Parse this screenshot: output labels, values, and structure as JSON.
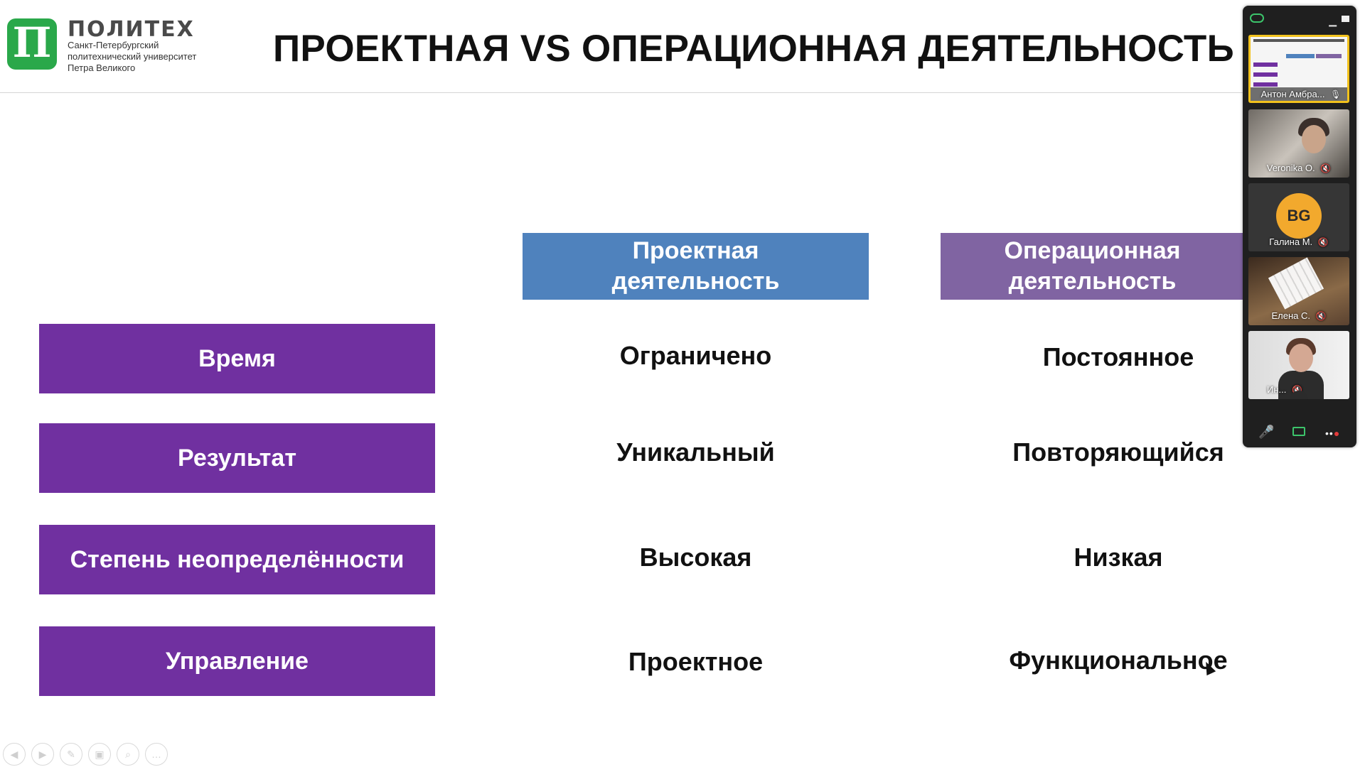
{
  "logo": {
    "name": "ПОЛИТЕХ",
    "subtitle_lines": [
      "Санкт-Петербургский",
      "политехнический университет",
      "Петра Великого"
    ]
  },
  "title": "ПРОЕКТНАЯ VS ОПЕРАЦИОННАЯ ДЕЯТЕЛЬНОСТЬ",
  "columns": [
    {
      "line1": "Проектная",
      "line2": "деятельность",
      "color": "#4f82bd"
    },
    {
      "line1": "Операционная",
      "line2": "деятельность",
      "color": "#8064a2"
    }
  ],
  "rows": [
    {
      "label": "Время",
      "project": "Ограничено",
      "operation": "Постоянное"
    },
    {
      "label": "Результат",
      "project": "Уникальный",
      "operation": "Повторяющийся"
    },
    {
      "label": "Степень неопределённости",
      "project": "Высокая",
      "operation": "Низкая"
    },
    {
      "label": "Управление",
      "project": "Проектное",
      "operation": "Функциональное"
    }
  ],
  "row_label_color": "#7030a0",
  "participants": [
    {
      "name": "Антон Амбра...",
      "type": "screen-share"
    },
    {
      "name": "Veronika O.",
      "type": "video",
      "muted": true
    },
    {
      "name": "Галина М.",
      "type": "avatar",
      "initials": "BG",
      "muted": true
    },
    {
      "name": "Елена С.",
      "type": "video",
      "muted": true
    },
    {
      "name": "Ин...",
      "type": "video",
      "muted": true
    }
  ],
  "icons": {
    "mic": "microphone-icon",
    "mic_off": "mic-off-icon",
    "share": "screen-share-icon",
    "more": "more-icon",
    "expand": "chevron-down-icon"
  }
}
